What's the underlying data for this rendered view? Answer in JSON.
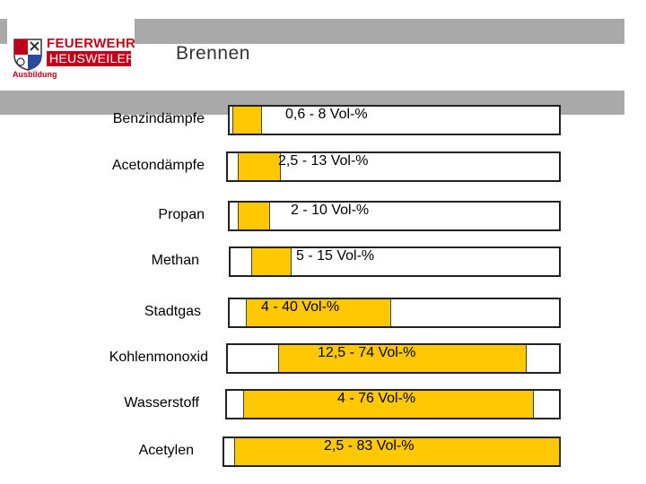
{
  "header": {
    "logo_line1": "FEUERWEHR",
    "logo_line2": "HEUSWEILER",
    "logo_line3": "Ausbildung",
    "title": "Brennen"
  },
  "colors": {
    "fill": "#ffc800",
    "header_bar": "#a9a9a9",
    "logo_red": "#c0001a"
  },
  "chart_data": {
    "type": "bar",
    "orientation": "horizontal-range",
    "unit": "Vol-%",
    "xlim": [
      0,
      100
    ],
    "categories": [
      "Benzindämpfe",
      "Acetondämpfe",
      "Propan",
      "Methan",
      "Stadtgas",
      "Kohlenmonoxid",
      "Wasserstoff",
      "Acetylen"
    ],
    "series": [
      {
        "label": "Benzindämpfe",
        "low": 0.6,
        "high": 8,
        "text": "0,6 - 8 Vol-%"
      },
      {
        "label": "Acetondämpfe",
        "low": 2.5,
        "high": 13,
        "text": "2,5 - 13 Vol-%"
      },
      {
        "label": "Propan",
        "low": 2,
        "high": 10,
        "text": "2 - 10 Vol-%"
      },
      {
        "label": "Methan",
        "low": 5,
        "high": 15,
        "text": "5 - 15 Vol-%"
      },
      {
        "label": "Stadtgas",
        "low": 4,
        "high": 40,
        "text": "4 - 40 Vol-%"
      },
      {
        "label": "Kohlenmonoxid",
        "low": 12.5,
        "high": 74,
        "text": "12,5 - 74 Vol-%"
      },
      {
        "label": "Wasserstoff",
        "low": 4,
        "high": 76,
        "text": "4 - 76 Vol-%"
      },
      {
        "label": "Acetylen",
        "low": 2.5,
        "high": 83,
        "text": "2,5 - 83 Vol-%"
      }
    ]
  }
}
